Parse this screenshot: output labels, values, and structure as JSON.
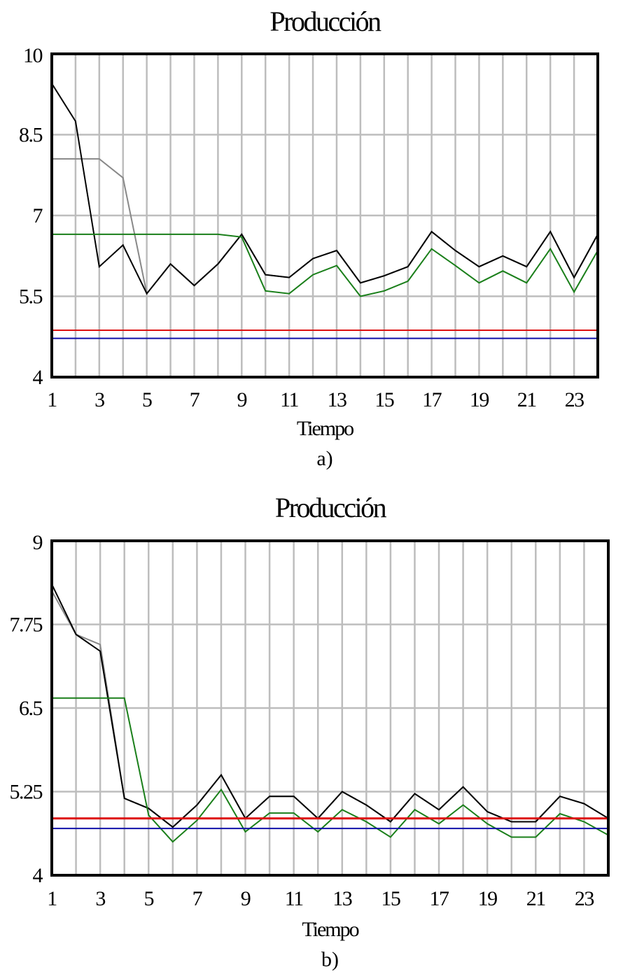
{
  "chart_data": [
    {
      "type": "line",
      "title": "Producción",
      "xlabel": "Tiempo",
      "ylabel": "",
      "caption": "a)",
      "xlim": [
        1,
        24
      ],
      "ylim": [
        4,
        10
      ],
      "yticks": [
        10,
        8.5,
        7,
        5.5,
        4
      ],
      "ytick_labels": [
        "10",
        "8.5",
        "7",
        "5.5",
        "4"
      ],
      "xticks": [
        1,
        3,
        5,
        7,
        9,
        11,
        13,
        15,
        17,
        19,
        21,
        23
      ],
      "xtick_labels": [
        "1",
        "3",
        "5",
        "7",
        "9",
        "11",
        "13",
        "15",
        "17",
        "19",
        "21",
        "23"
      ],
      "grid": true,
      "x": [
        1,
        2,
        3,
        4,
        5,
        6,
        7,
        8,
        9,
        10,
        11,
        12,
        13,
        14,
        15,
        16,
        17,
        18,
        19,
        20,
        21,
        22,
        23,
        24
      ],
      "series": [
        {
          "color": "#888888",
          "width": 2,
          "values": [
            8.05,
            8.05,
            8.05,
            7.7,
            5.55,
            6.1,
            5.7,
            6.1,
            6.65,
            5.9,
            5.85,
            6.2,
            6.35,
            5.75,
            5.88,
            6.05,
            6.7,
            6.35,
            6.05,
            6.25,
            6.05,
            6.7,
            5.85,
            6.65
          ]
        },
        {
          "color": "#000000",
          "width": 2,
          "values": [
            9.45,
            8.75,
            6.05,
            6.45,
            5.55,
            6.1,
            5.7,
            6.1,
            6.65,
            5.9,
            5.85,
            6.2,
            6.35,
            5.75,
            5.88,
            6.05,
            6.7,
            6.35,
            6.05,
            6.25,
            6.05,
            6.7,
            5.85,
            6.65
          ]
        },
        {
          "color": "#1a7f1a",
          "width": 2,
          "values": [
            6.65,
            6.65,
            6.65,
            6.65,
            6.65,
            6.65,
            6.65,
            6.65,
            6.6,
            5.6,
            5.55,
            5.9,
            6.07,
            5.5,
            5.6,
            5.78,
            6.38,
            6.07,
            5.75,
            5.97,
            5.75,
            6.38,
            5.58,
            6.35
          ]
        },
        {
          "color": "#dd1111",
          "width": 2,
          "values": [
            4.87,
            4.87,
            4.87,
            4.87,
            4.87,
            4.87,
            4.87,
            4.87,
            4.87,
            4.87,
            4.87,
            4.87,
            4.87,
            4.87,
            4.87,
            4.87,
            4.87,
            4.87,
            4.87,
            4.87,
            4.87,
            4.87,
            4.87,
            4.87
          ]
        },
        {
          "color": "#1111aa",
          "width": 2,
          "values": [
            4.72,
            4.72,
            4.72,
            4.72,
            4.72,
            4.72,
            4.72,
            4.72,
            4.72,
            4.72,
            4.72,
            4.72,
            4.72,
            4.72,
            4.72,
            4.72,
            4.72,
            4.72,
            4.72,
            4.72,
            4.72,
            4.72,
            4.72,
            4.72
          ]
        }
      ]
    },
    {
      "type": "line",
      "title": "Producción",
      "xlabel": "Tiempo",
      "ylabel": "",
      "caption": "b)",
      "xlim": [
        1,
        24
      ],
      "ylim": [
        4,
        9
      ],
      "yticks": [
        9,
        7.75,
        6.5,
        5.25,
        4
      ],
      "ytick_labels": [
        "9",
        "7.75",
        "6.5",
        "5.25",
        "4"
      ],
      "xticks": [
        1,
        3,
        5,
        7,
        9,
        11,
        13,
        15,
        17,
        19,
        21,
        23
      ],
      "xtick_labels": [
        "1",
        "3",
        "5",
        "7",
        "9",
        "11",
        "13",
        "15",
        "17",
        "19",
        "21",
        "23"
      ],
      "grid": true,
      "x": [
        1,
        2,
        3,
        4,
        5,
        6,
        7,
        8,
        9,
        10,
        11,
        12,
        13,
        14,
        15,
        16,
        17,
        18,
        19,
        20,
        21,
        22,
        23,
        24
      ],
      "series": [
        {
          "color": "#888888",
          "width": 2,
          "values": [
            8.25,
            7.6,
            7.45,
            5.15,
            5.0,
            4.72,
            5.05,
            5.5,
            4.85,
            5.18,
            5.18,
            4.85,
            5.25,
            5.05,
            4.8,
            5.22,
            4.98,
            5.32,
            4.95,
            4.8,
            4.8,
            5.18,
            5.07,
            4.85
          ]
        },
        {
          "color": "#000000",
          "width": 2,
          "values": [
            8.35,
            7.6,
            7.35,
            5.15,
            5.0,
            4.72,
            5.05,
            5.5,
            4.85,
            5.18,
            5.18,
            4.85,
            5.25,
            5.05,
            4.8,
            5.22,
            4.98,
            5.32,
            4.95,
            4.8,
            4.8,
            5.18,
            5.07,
            4.85
          ]
        },
        {
          "color": "#1a7f1a",
          "width": 2,
          "values": [
            6.65,
            6.65,
            6.65,
            6.65,
            4.9,
            4.5,
            4.82,
            5.28,
            4.65,
            4.93,
            4.93,
            4.65,
            4.98,
            4.8,
            4.57,
            4.98,
            4.77,
            5.05,
            4.77,
            4.57,
            4.57,
            4.92,
            4.8,
            4.6
          ]
        },
        {
          "color": "#dd1111",
          "width": 3,
          "values": [
            4.85,
            4.85,
            4.85,
            4.85,
            4.85,
            4.85,
            4.85,
            4.85,
            4.85,
            4.85,
            4.85,
            4.85,
            4.85,
            4.85,
            4.85,
            4.85,
            4.85,
            4.85,
            4.85,
            4.85,
            4.85,
            4.85,
            4.85,
            4.85
          ]
        },
        {
          "color": "#1111aa",
          "width": 2,
          "values": [
            4.7,
            4.7,
            4.7,
            4.7,
            4.7,
            4.7,
            4.7,
            4.7,
            4.7,
            4.7,
            4.7,
            4.7,
            4.7,
            4.7,
            4.7,
            4.7,
            4.7,
            4.7,
            4.7,
            4.7,
            4.7,
            4.7,
            4.7,
            4.7
          ]
        }
      ]
    }
  ]
}
